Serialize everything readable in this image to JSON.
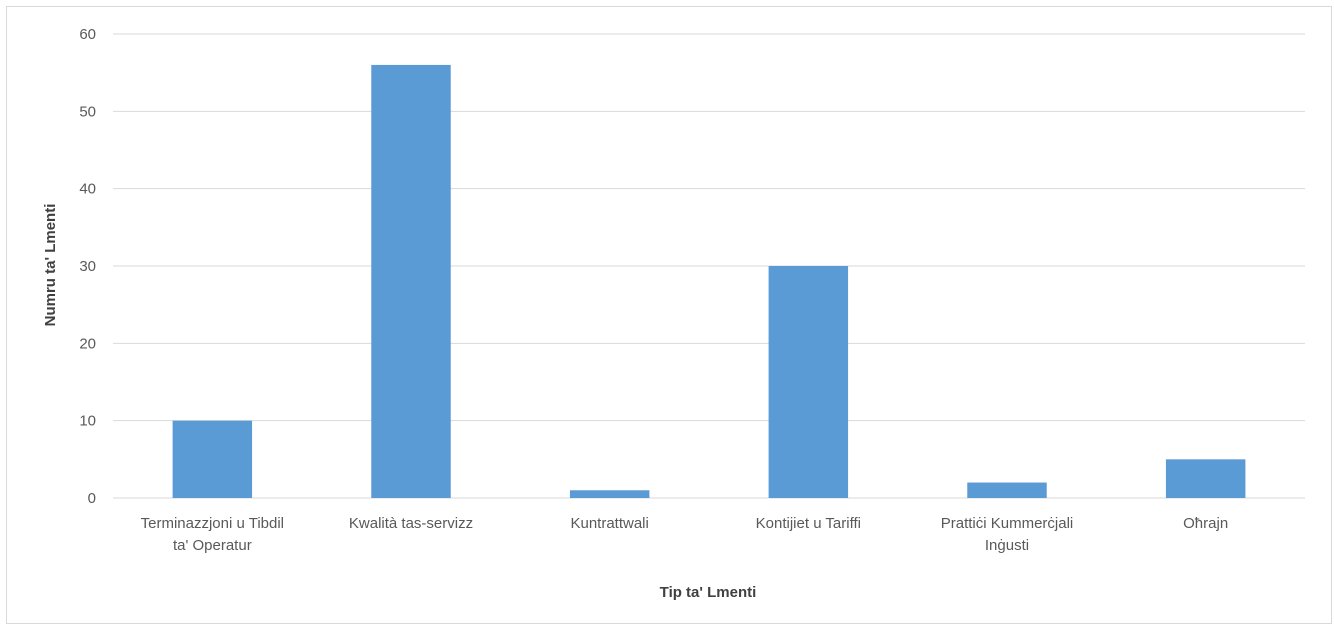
{
  "chart_data": {
    "type": "bar",
    "categories": [
      [
        "Terminazzjoni u Tibdil",
        "ta' Operatur"
      ],
      [
        "Kwalità tas-servizz"
      ],
      [
        "Kuntrattwali"
      ],
      [
        "Kontijiet u Tariffi"
      ],
      [
        "Prattiċi Kummerċjali",
        "Inġusti"
      ],
      [
        "Oħrajn"
      ]
    ],
    "values": [
      10,
      56,
      1,
      30,
      2,
      5
    ],
    "title": "",
    "xlabel": "Tip ta' Lmenti",
    "ylabel": "Numru ta' Lmenti",
    "ylim": [
      0,
      60
    ],
    "yticks": [
      0,
      10,
      20,
      30,
      40,
      50,
      60
    ],
    "grid": true,
    "legend": "none",
    "colors": {
      "bar": "#5b9bd5",
      "grid": "#d9d9d9",
      "axis": "#d9d9d9",
      "tick_text": "#595959",
      "title_text": "#404040"
    }
  }
}
